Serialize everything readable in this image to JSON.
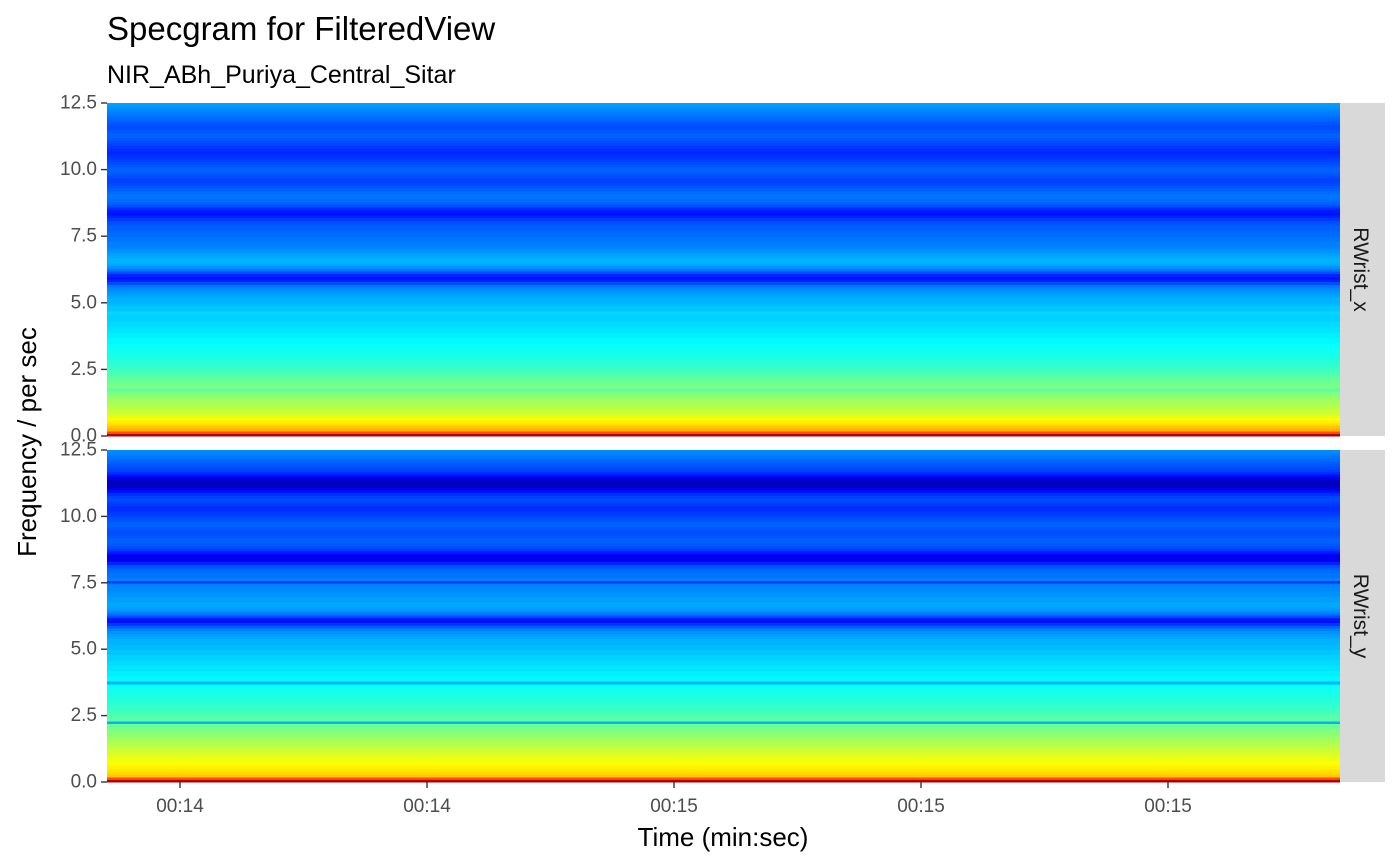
{
  "chart_data": {
    "type": "heatmap",
    "title": "Specgram for FilteredView",
    "subtitle": "NIR_ABh_Puriya_Central_Sitar",
    "xlabel": "Time (min:sec)",
    "ylabel": "Frequency / per sec",
    "x_tick_labels": [
      "00:14",
      "00:14",
      "00:15",
      "00:15",
      "00:15"
    ],
    "y_tick_labels": [
      "0.0",
      "2.5",
      "5.0",
      "7.5",
      "10.0",
      "12.5"
    ],
    "ylim": [
      0,
      12.5
    ],
    "colormap": [
      "#00007F",
      "#0000FF",
      "#007FFF",
      "#00FFFF",
      "#7FFF7F",
      "#FFFF00",
      "#FF7F00",
      "#FF0000",
      "#7F0000"
    ],
    "grid": false,
    "panels": [
      {
        "name": "RWrist_x",
        "freq_step": 0.1,
        "levels": [
          0.95,
          0.8,
          0.7,
          0.68,
          0.66,
          0.64,
          0.62,
          0.6,
          0.58,
          0.57,
          0.56,
          0.55,
          0.54,
          0.53,
          0.52,
          0.51,
          0.5,
          0.46,
          0.5,
          0.49,
          0.48,
          0.47,
          0.46,
          0.45,
          0.44,
          0.43,
          0.42,
          0.42,
          0.41,
          0.4,
          0.4,
          0.39,
          0.39,
          0.38,
          0.38,
          0.37,
          0.37,
          0.36,
          0.36,
          0.35,
          0.35,
          0.34,
          0.34,
          0.33,
          0.33,
          0.33,
          0.34,
          0.32,
          0.32,
          0.31,
          0.3,
          0.3,
          0.29,
          0.28,
          0.27,
          0.26,
          0.24,
          0.2,
          0.16,
          0.14,
          0.16,
          0.2,
          0.24,
          0.27,
          0.29,
          0.3,
          0.3,
          0.29,
          0.28,
          0.27,
          0.26,
          0.25,
          0.25,
          0.24,
          0.24,
          0.23,
          0.23,
          0.22,
          0.22,
          0.21,
          0.2,
          0.18,
          0.16,
          0.14,
          0.15,
          0.17,
          0.2,
          0.22,
          0.23,
          0.24,
          0.24,
          0.23,
          0.22,
          0.21,
          0.2,
          0.19,
          0.19,
          0.2,
          0.21,
          0.22,
          0.22,
          0.21,
          0.2,
          0.19,
          0.18,
          0.17,
          0.16,
          0.17,
          0.18,
          0.19,
          0.2,
          0.21,
          0.22,
          0.22,
          0.21,
          0.2,
          0.2,
          0.21,
          0.22,
          0.23,
          0.24,
          0.25,
          0.26,
          0.27,
          0.28,
          0.29
        ]
      },
      {
        "name": "RWrist_y",
        "freq_step": 0.1,
        "levels": [
          0.95,
          0.8,
          0.68,
          0.66,
          0.65,
          0.64,
          0.63,
          0.62,
          0.61,
          0.6,
          0.59,
          0.58,
          0.57,
          0.56,
          0.55,
          0.54,
          0.53,
          0.52,
          0.51,
          0.5,
          0.49,
          0.48,
          0.3,
          0.47,
          0.46,
          0.45,
          0.44,
          0.43,
          0.43,
          0.42,
          0.41,
          0.41,
          0.4,
          0.4,
          0.39,
          0.39,
          0.38,
          0.3,
          0.37,
          0.37,
          0.36,
          0.36,
          0.35,
          0.35,
          0.34,
          0.34,
          0.33,
          0.33,
          0.32,
          0.32,
          0.31,
          0.31,
          0.3,
          0.3,
          0.29,
          0.28,
          0.27,
          0.25,
          0.22,
          0.18,
          0.14,
          0.15,
          0.2,
          0.24,
          0.27,
          0.28,
          0.29,
          0.29,
          0.28,
          0.28,
          0.27,
          0.27,
          0.26,
          0.26,
          0.25,
          0.18,
          0.25,
          0.24,
          0.24,
          0.23,
          0.22,
          0.2,
          0.16,
          0.12,
          0.1,
          0.12,
          0.15,
          0.18,
          0.2,
          0.21,
          0.22,
          0.22,
          0.21,
          0.2,
          0.2,
          0.21,
          0.22,
          0.22,
          0.21,
          0.2,
          0.19,
          0.18,
          0.17,
          0.17,
          0.18,
          0.19,
          0.2,
          0.19,
          0.17,
          0.14,
          0.1,
          0.07,
          0.06,
          0.07,
          0.1,
          0.14,
          0.17,
          0.19,
          0.2,
          0.21,
          0.22,
          0.23,
          0.24,
          0.25,
          0.26,
          0.27
        ]
      }
    ]
  }
}
